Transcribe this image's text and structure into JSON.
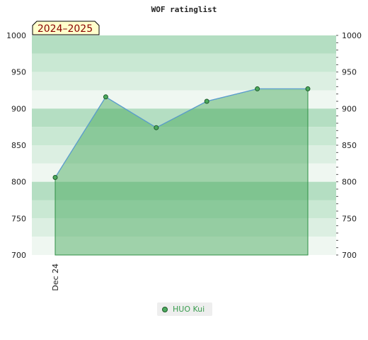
{
  "chart_data": {
    "type": "area",
    "title": "WOF ratinglist",
    "badge": "2024–2025",
    "x_tick_labels": [
      "Dec 24"
    ],
    "ylim": [
      700,
      1000
    ],
    "y_ticks": [
      700,
      750,
      800,
      850,
      900,
      950,
      1000
    ],
    "y_tick_labels": [
      "700",
      "750",
      "800",
      "850",
      "900",
      "950",
      "1000"
    ],
    "series": [
      {
        "name": "HUO Kui",
        "values": [
          806,
          916,
          874,
          910,
          927,
          927
        ]
      }
    ],
    "legend_placement": "bottom-center",
    "colors": {
      "line": "#5b9bd5",
      "fill": "#3ea555",
      "marker": "#4caa5e",
      "badge_bg": "#ffffcc"
    }
  }
}
